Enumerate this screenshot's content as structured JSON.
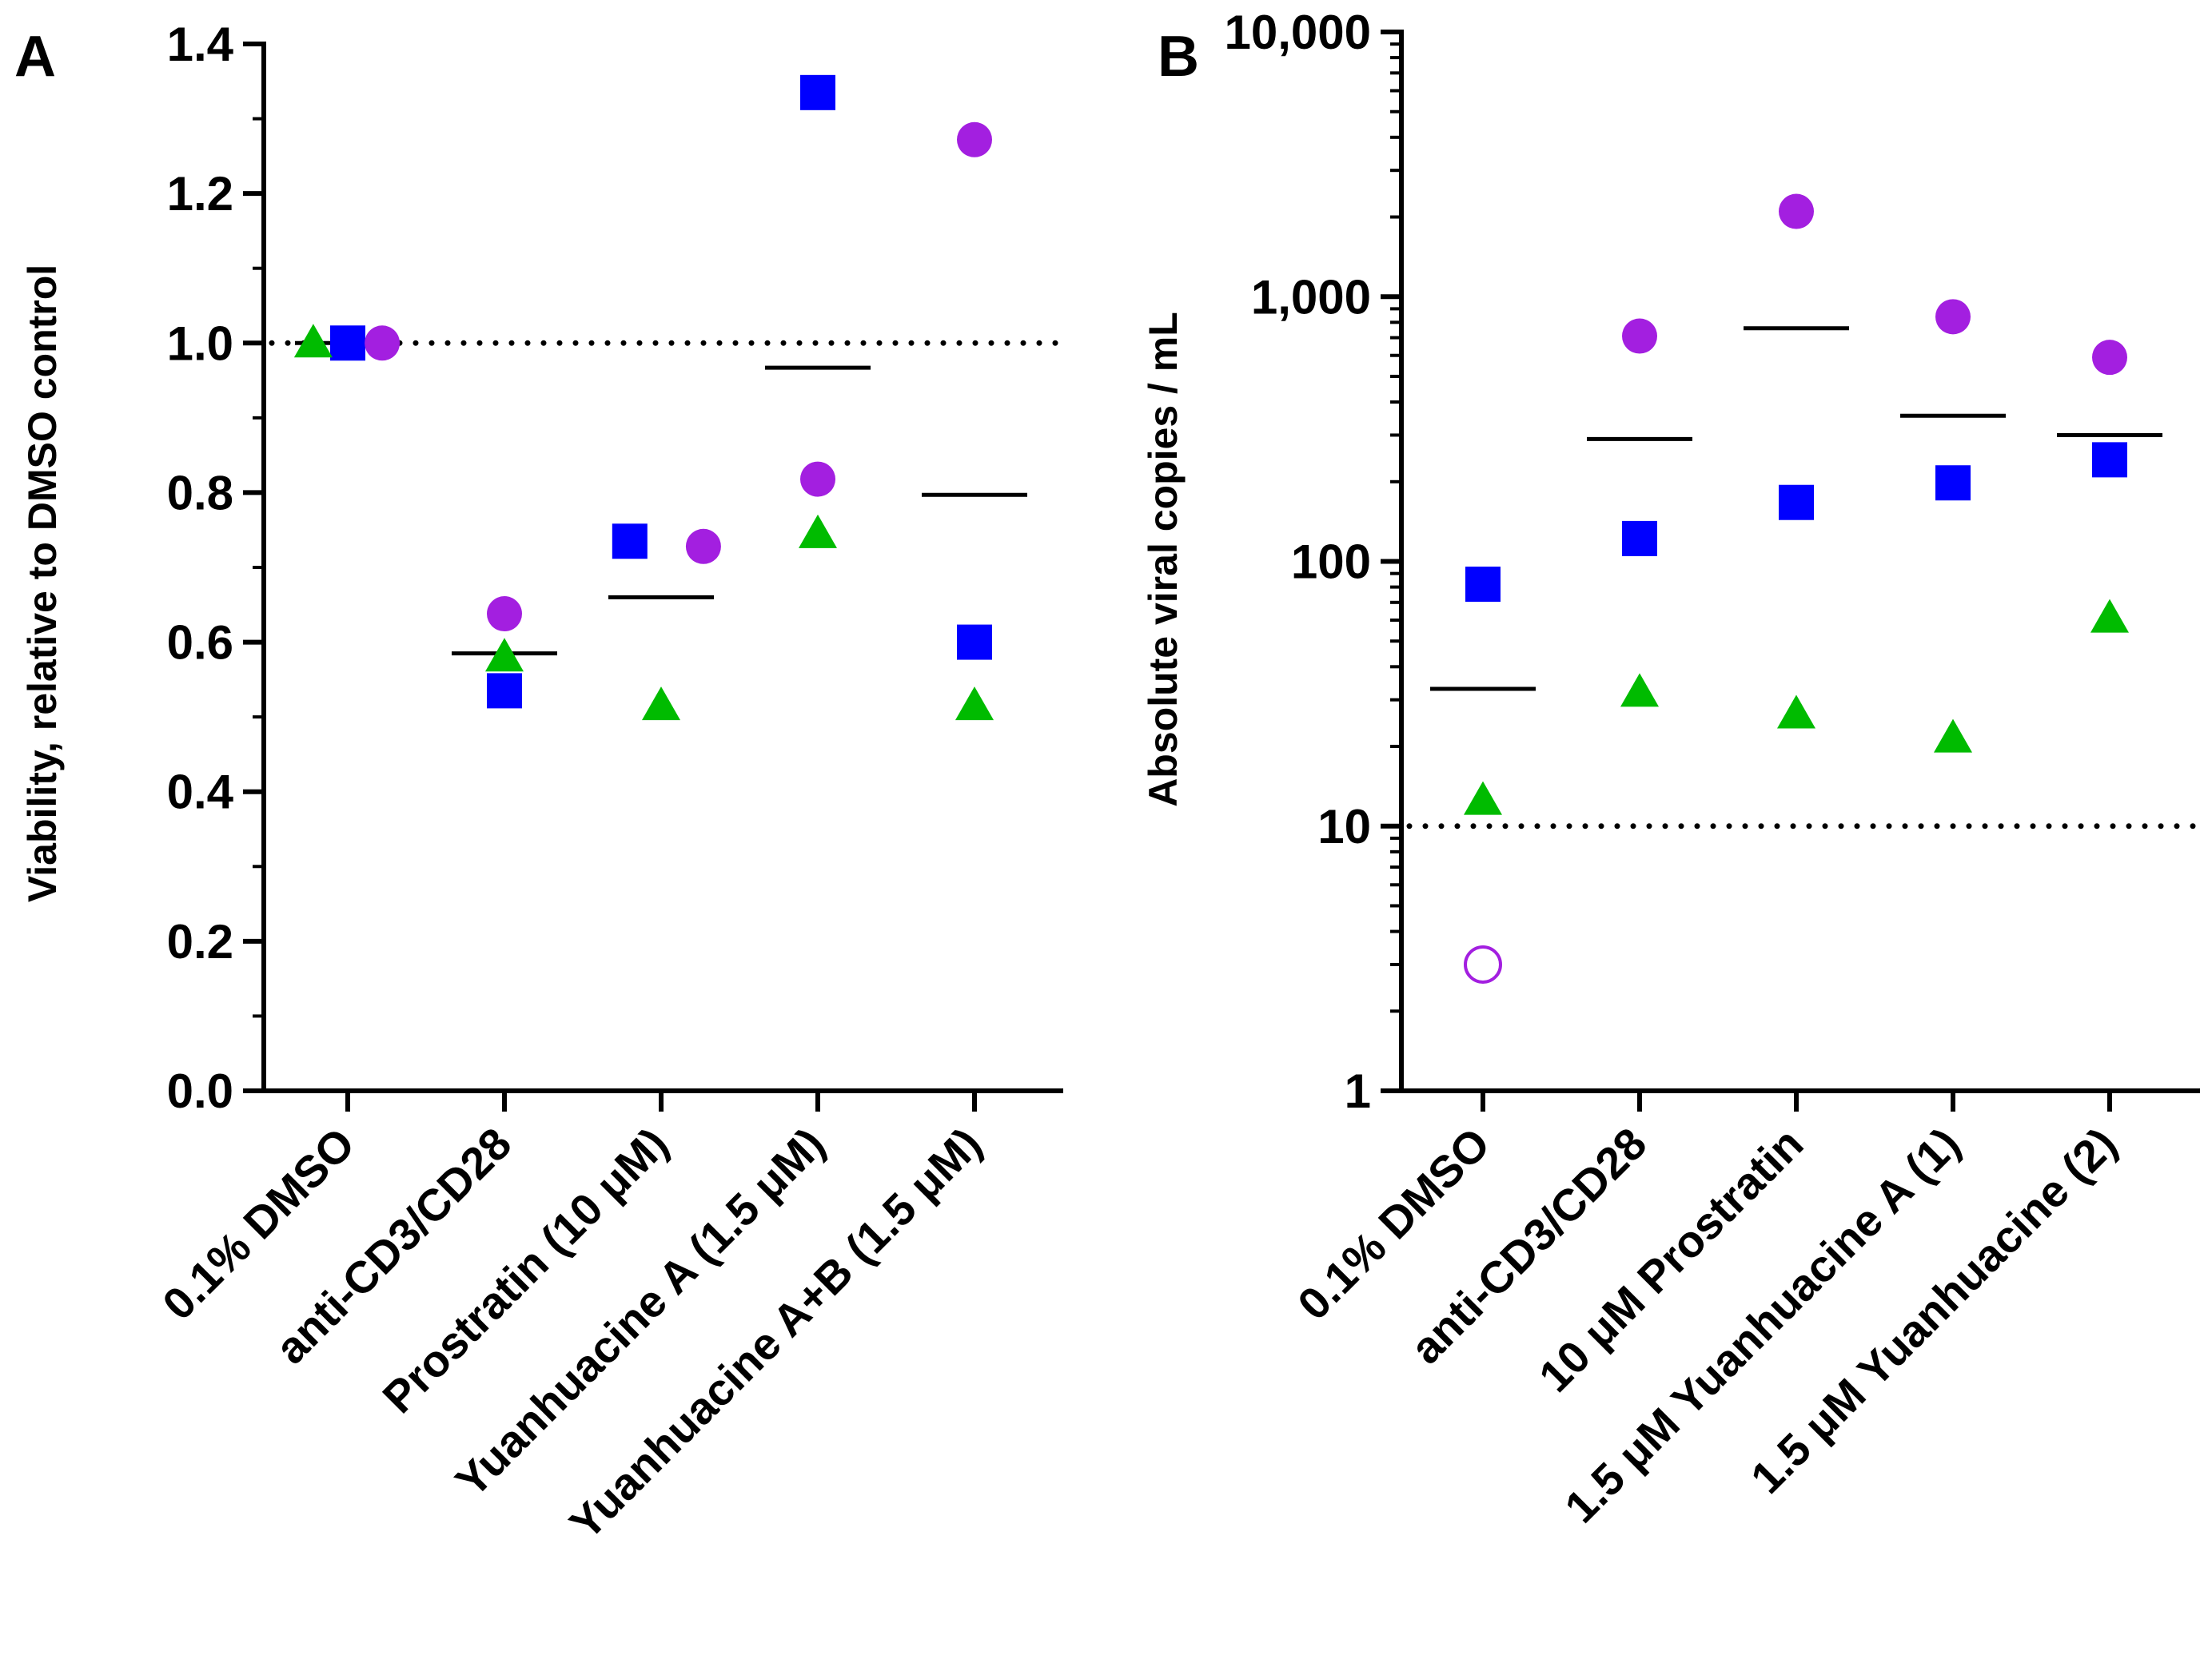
{
  "chart_data": [
    {
      "panel": "A",
      "type": "scatter",
      "scale": "linear",
      "ylabel": "Viability, relative to DMSO control",
      "ylim": [
        0,
        1.4
      ],
      "yticks": [
        0.0,
        0.2,
        0.4,
        0.6,
        0.8,
        1.0,
        1.2,
        1.4
      ],
      "ytick_labels": [
        "0.0",
        "0.2",
        "0.4",
        "0.6",
        "0.8",
        "1.0",
        "1.2",
        "1.4"
      ],
      "categories": [
        "0.1% DMSO",
        "anti-CD3/CD28",
        "Prostratin (10 μM)",
        "Yuanhuacine A (1.5 μM)",
        "Yuanhuacine A+B (1.5 μM)"
      ],
      "reference_line": 1.0,
      "series": [
        {
          "name": "square",
          "marker": "square",
          "color": "#0000ff",
          "values": [
            1.0,
            0.535,
            0.735,
            1.335,
            0.6
          ],
          "offsets": [
            0,
            0,
            -0.2,
            0,
            0
          ]
        },
        {
          "name": "circle",
          "marker": "circle",
          "color": "#a31fe0",
          "values": [
            1.0,
            0.638,
            0.728,
            0.818,
            1.272
          ],
          "offsets": [
            0.22,
            0,
            0.27,
            0,
            0
          ]
        },
        {
          "name": "triangle",
          "marker": "triangle",
          "color": "#00bb00",
          "values": [
            1.0,
            0.58,
            0.515,
            0.745,
            0.515
          ],
          "offsets": [
            -0.22,
            0,
            0,
            0,
            0
          ]
        }
      ],
      "means": [
        1.0,
        0.585,
        0.66,
        0.967,
        0.797
      ]
    },
    {
      "panel": "B",
      "type": "scatter",
      "scale": "log",
      "ylabel": "Absolute viral copies / mL",
      "ylim": [
        1,
        10000
      ],
      "yticks": [
        1,
        10,
        100,
        1000,
        10000
      ],
      "ytick_labels": [
        "1",
        "10",
        "100",
        "1,000",
        "10,000"
      ],
      "categories": [
        "0.1% DMSO",
        "anti-CD3/CD28",
        "10 μM Prostratin",
        "1.5 μM Yuanhuacine A (1)",
        "1.5 μM Yuanhuacine (2)"
      ],
      "reference_line": 10,
      "series": [
        {
          "name": "square",
          "marker": "square",
          "color": "#0000ff",
          "values": [
            82,
            122,
            167,
            198,
            242
          ]
        },
        {
          "name": "circle",
          "marker": "circle",
          "color": "#a31fe0",
          "values": [
            3,
            710,
            2100,
            840,
            590
          ],
          "hollow": [
            true,
            false,
            false,
            false,
            false
          ]
        },
        {
          "name": "triangle",
          "marker": "triangle",
          "color": "#00bb00",
          "values": [
            12.5,
            32,
            26.5,
            21.5,
            61
          ]
        }
      ],
      "means": [
        33,
        290,
        760,
        355,
        300
      ]
    }
  ],
  "panel_labels": [
    "A",
    "B"
  ]
}
